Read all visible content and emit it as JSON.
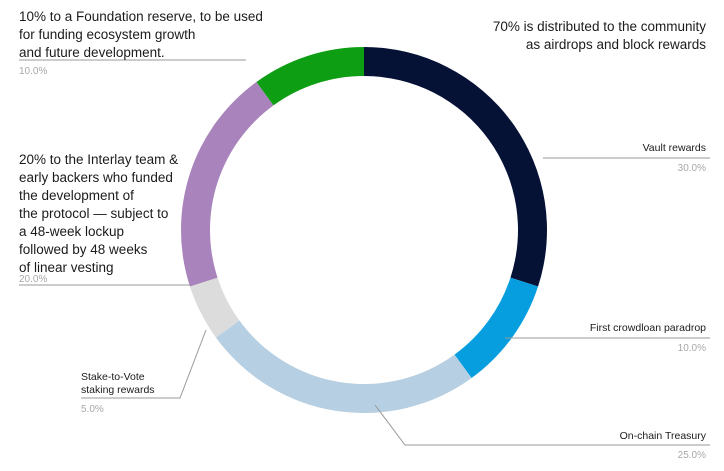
{
  "chart_data": {
    "type": "pie",
    "donut": true,
    "slices": [
      {
        "label": "Vault rewards",
        "value": 30.0,
        "value_text": "30.0%",
        "color": "#061136"
      },
      {
        "label": "First crowdloan paradrop",
        "value": 10.0,
        "value_text": "10.0%",
        "color": "#079ee0"
      },
      {
        "label": "On-chain Treasury",
        "value": 25.0,
        "value_text": "25.0%",
        "color": "#b6cfe2"
      },
      {
        "label": "Stake-to-Vote\nstaking rewards",
        "value": 5.0,
        "value_text": "5.0%",
        "color": "#dcdcdc"
      },
      {
        "label": "",
        "value": 20.0,
        "value_text": "20.0%",
        "color": "#a983bb"
      },
      {
        "label": "",
        "value": 10.0,
        "value_text": "10.0%",
        "color": "#0e9e14"
      }
    ],
    "annotations": {
      "community": "70% is distributed to the community\nas airdrops and block rewards",
      "foundation": "10% to a Foundation reserve, to be used\nfor funding ecosystem growth\nand future development.",
      "team": "20% to the Interlay team &\nearly backers who funded\nthe development of\nthe protocol — subject to\na 48-week lockup\nfollowed by 48 weeks\nof linear vesting"
    }
  }
}
